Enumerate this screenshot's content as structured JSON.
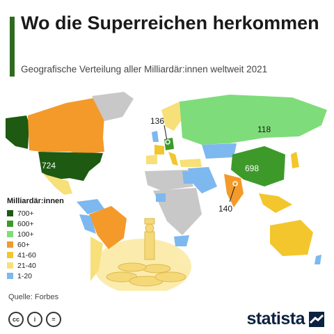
{
  "header": {
    "title": "Wo die Superreichen herkommen",
    "subtitle": "Geografische Verteilung aller Milliardär:innen weltweit 2021"
  },
  "map": {
    "callouts": [
      {
        "id": "usa",
        "value": "724"
      },
      {
        "id": "china",
        "value": "698"
      },
      {
        "id": "russia",
        "value": "118"
      },
      {
        "id": "germany",
        "value": "136"
      },
      {
        "id": "india",
        "value": "140"
      }
    ]
  },
  "legend": {
    "title": "Milliardär:innen",
    "items": [
      {
        "label": "700+",
        "color": "#1e5a12"
      },
      {
        "label": "600+",
        "color": "#3d9a2a"
      },
      {
        "label": "100+",
        "color": "#7fdc7a"
      },
      {
        "label": "60+",
        "color": "#f39a2a"
      },
      {
        "label": "41-60",
        "color": "#f2c62c"
      },
      {
        "label": "21-40",
        "color": "#f7e07a"
      },
      {
        "label": "1-20",
        "color": "#7db8ef"
      }
    ],
    "no_data_color": "#c8c8c8"
  },
  "footer": {
    "source": "Quelle: Forbes",
    "license_icons": [
      "cc",
      "i",
      "="
    ],
    "brand": "statista"
  }
}
